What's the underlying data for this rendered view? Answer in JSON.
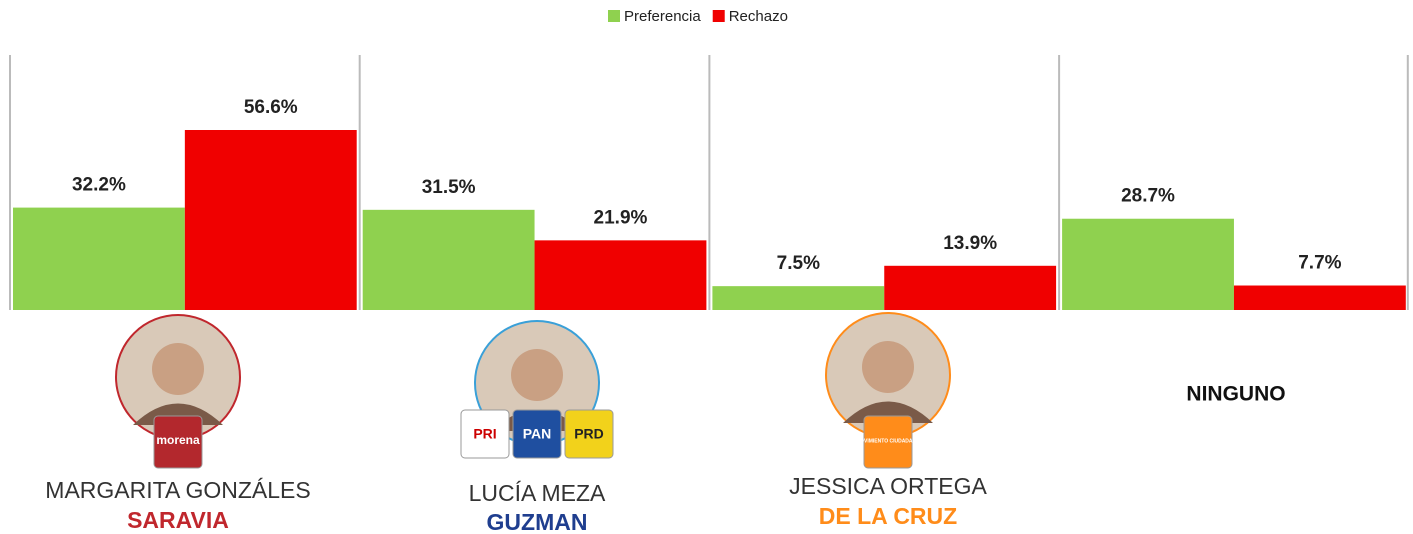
{
  "chart_data": {
    "type": "bar",
    "categories": [
      "MARGARITA GONZÁLES",
      "LUCÍA MEZA",
      "JESSICA ORTEGA",
      "NINGUNO"
    ],
    "surnames": [
      "SARAVIA",
      "GUZMAN",
      "DE LA CRUZ",
      null
    ],
    "surname_colors": [
      "#c0272d",
      "#1f3e8f",
      "#ff8c1a",
      null
    ],
    "parties": [
      [
        "morena"
      ],
      [
        "PRI",
        "PAN",
        "PRD"
      ],
      [
        "MOVIMIENTO CIUDADANO"
      ],
      []
    ],
    "series": [
      {
        "name": "Preferencia",
        "color": "#8fd14f",
        "values": [
          32.2,
          31.5,
          7.5,
          28.7
        ],
        "value_labels": [
          "32.2%",
          "31.5%",
          "7.5%",
          "28.7%"
        ]
      },
      {
        "name": "Rechazo",
        "color": "#f00000",
        "values": [
          56.6,
          21.9,
          13.9,
          7.7
        ],
        "value_labels": [
          "56.6%",
          "21.9%",
          "13.9%",
          "7.7%"
        ]
      }
    ],
    "legend": "top"
  }
}
